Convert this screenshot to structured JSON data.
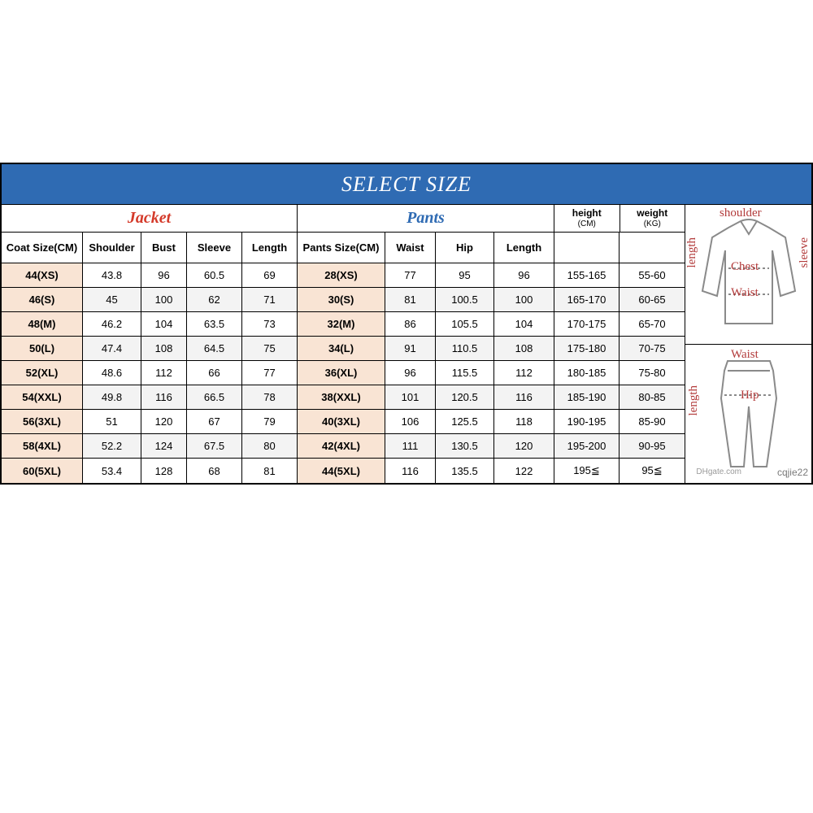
{
  "title": "SELECT SIZE",
  "sections": {
    "jacket": "Jacket",
    "pants": "Pants"
  },
  "jacket_cols": [
    "Coat Size(CM)",
    "Shoulder",
    "Bust",
    "Sleeve",
    "Length"
  ],
  "pants_cols": [
    "Pants Size(CM)",
    "Waist",
    "Hip",
    "Length"
  ],
  "hw_cols": {
    "height": "height",
    "height_unit": "(CM)",
    "weight": "weight",
    "weight_unit": "(KG)"
  },
  "colors": {
    "title_bg": "#2f6bb3",
    "title_fg": "#ffffff",
    "jacket_fg": "#d43a2a",
    "pants_fg": "#2f6bb3",
    "size_bg": "#f9e4d4",
    "row_alt_bg": "#f3f3f3",
    "border": "#000000",
    "diagram_label": "#b23a3a",
    "diagram_stroke": "#8a8a8a"
  },
  "rows": [
    {
      "coat": "44(XS)",
      "shoulder": "43.8",
      "bust": "96",
      "sleeve": "60.5",
      "jlen": "69",
      "psize": "28(XS)",
      "waist": "77",
      "hip": "95",
      "plen": "96",
      "height": "155-165",
      "weight": "55-60"
    },
    {
      "coat": "46(S)",
      "shoulder": "45",
      "bust": "100",
      "sleeve": "62",
      "jlen": "71",
      "psize": "30(S)",
      "waist": "81",
      "hip": "100.5",
      "plen": "100",
      "height": "165-170",
      "weight": "60-65"
    },
    {
      "coat": "48(M)",
      "shoulder": "46.2",
      "bust": "104",
      "sleeve": "63.5",
      "jlen": "73",
      "psize": "32(M)",
      "waist": "86",
      "hip": "105.5",
      "plen": "104",
      "height": "170-175",
      "weight": "65-70"
    },
    {
      "coat": "50(L)",
      "shoulder": "47.4",
      "bust": "108",
      "sleeve": "64.5",
      "jlen": "75",
      "psize": "34(L)",
      "waist": "91",
      "hip": "110.5",
      "plen": "108",
      "height": "175-180",
      "weight": "70-75"
    },
    {
      "coat": "52(XL)",
      "shoulder": "48.6",
      "bust": "112",
      "sleeve": "66",
      "jlen": "77",
      "psize": "36(XL)",
      "waist": "96",
      "hip": "115.5",
      "plen": "112",
      "height": "180-185",
      "weight": "75-80"
    },
    {
      "coat": "54(XXL)",
      "shoulder": "49.8",
      "bust": "116",
      "sleeve": "66.5",
      "jlen": "78",
      "psize": "38(XXL)",
      "waist": "101",
      "hip": "120.5",
      "plen": "116",
      "height": "185-190",
      "weight": "80-85"
    },
    {
      "coat": "56(3XL)",
      "shoulder": "51",
      "bust": "120",
      "sleeve": "67",
      "jlen": "79",
      "psize": "40(3XL)",
      "waist": "106",
      "hip": "125.5",
      "plen": "118",
      "height": "190-195",
      "weight": "85-90"
    },
    {
      "coat": "58(4XL)",
      "shoulder": "52.2",
      "bust": "124",
      "sleeve": "67.5",
      "jlen": "80",
      "psize": "42(4XL)",
      "waist": "111",
      "hip": "130.5",
      "plen": "120",
      "height": "195-200",
      "weight": "90-95"
    },
    {
      "coat": "60(5XL)",
      "shoulder": "53.4",
      "bust": "128",
      "sleeve": "68",
      "jlen": "81",
      "psize": "44(5XL)",
      "waist": "116",
      "hip": "135.5",
      "plen": "122",
      "height": "195≦",
      "weight": "95≦"
    }
  ],
  "diagram_labels": {
    "shoulder": "shoulder",
    "length": "length",
    "sleeve": "sleeve",
    "chest": "Chest",
    "waist": "Waist",
    "pwaist": "Waist",
    "hip": "Hip",
    "plength": "length"
  },
  "watermark": {
    "site": "DHgate.com",
    "user": "cqjie22"
  }
}
